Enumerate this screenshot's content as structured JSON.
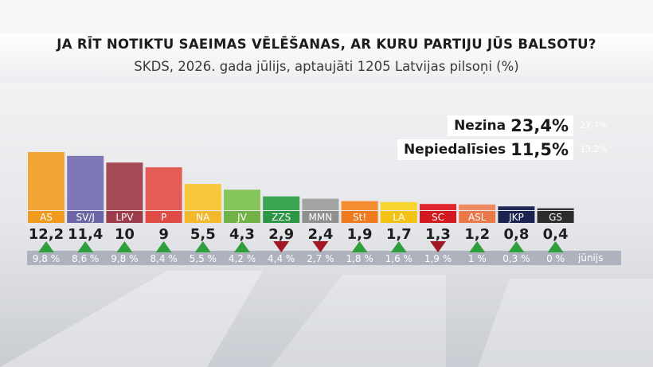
{
  "title": "JA RĪT NOTIKTU SAEIMAS VĒLĒŠANAS, AR KURU PARTIJU JŪS BALSOTU?",
  "subtitle": "SKDS, 2026. gada jūlijs, aptaujāti 1205 Latvijas pilsoņi (%)",
  "side_stats": [
    {
      "label": "Nezina",
      "value": "23,4%",
      "previous": "27,7%"
    },
    {
      "label": "Nepiedalīsies",
      "value": "11,5%",
      "previous": "13,2%"
    }
  ],
  "previous_month_label": "jūnijs",
  "chart_data": {
    "type": "bar",
    "categories": [
      "AS",
      "SV/J",
      "LPV",
      "P",
      "NA",
      "JV",
      "ZZS",
      "MMN",
      "St!",
      "LA",
      "SC",
      "ASL",
      "JKP",
      "GS"
    ],
    "values": [
      12.2,
      11.4,
      10,
      9,
      5.5,
      4.3,
      2.9,
      2.4,
      1.9,
      1.7,
      1.3,
      1.2,
      0.8,
      0.4
    ],
    "value_labels": [
      "12,2",
      "11,4",
      "10",
      "9",
      "5,5",
      "4,3",
      "2,9",
      "2,4",
      "1,9",
      "1,7",
      "1,3",
      "1,2",
      "0,8",
      "0,4"
    ],
    "previous_values": [
      9.8,
      8.6,
      9.8,
      8.4,
      5.5,
      4.2,
      4.4,
      2.7,
      1.8,
      1.6,
      1.9,
      1,
      0.3,
      0
    ],
    "previous_labels": [
      "9,8 %",
      "8,6 %",
      "9,8 %",
      "8,4 %",
      "5,5 %",
      "4,2 %",
      "4,4 %",
      "2,7 %",
      "1,8 %",
      "1,6 %",
      "1,9 %",
      "1 %",
      "0,3 %",
      "0 %"
    ],
    "trend": [
      "up",
      "up",
      "up",
      "up",
      "up",
      "up",
      "down",
      "down",
      "up",
      "up",
      "down",
      "up",
      "up",
      "up"
    ],
    "colors": [
      "#f3a535",
      "#7f78b6",
      "#a64a57",
      "#e35d55",
      "#f7c93a",
      "#86c55c",
      "#3aa653",
      "#a4a4a4",
      "#f58c30",
      "#f8d631",
      "#e0252c",
      "#f08a62",
      "#1f2a56",
      "#333333"
    ],
    "label_colors": [
      "#f09a1f",
      "#6d66a6",
      "#9c3c4b",
      "#df4c45",
      "#f3b82c",
      "#72b347",
      "#2d9645",
      "#8f8f8f",
      "#f07b1f",
      "#f2c314",
      "#d3191f",
      "#ea7848",
      "#1b2450",
      "#2c2c2c"
    ],
    "trend_colors": {
      "up": "#2f9e3c",
      "down": "#a11824"
    }
  }
}
